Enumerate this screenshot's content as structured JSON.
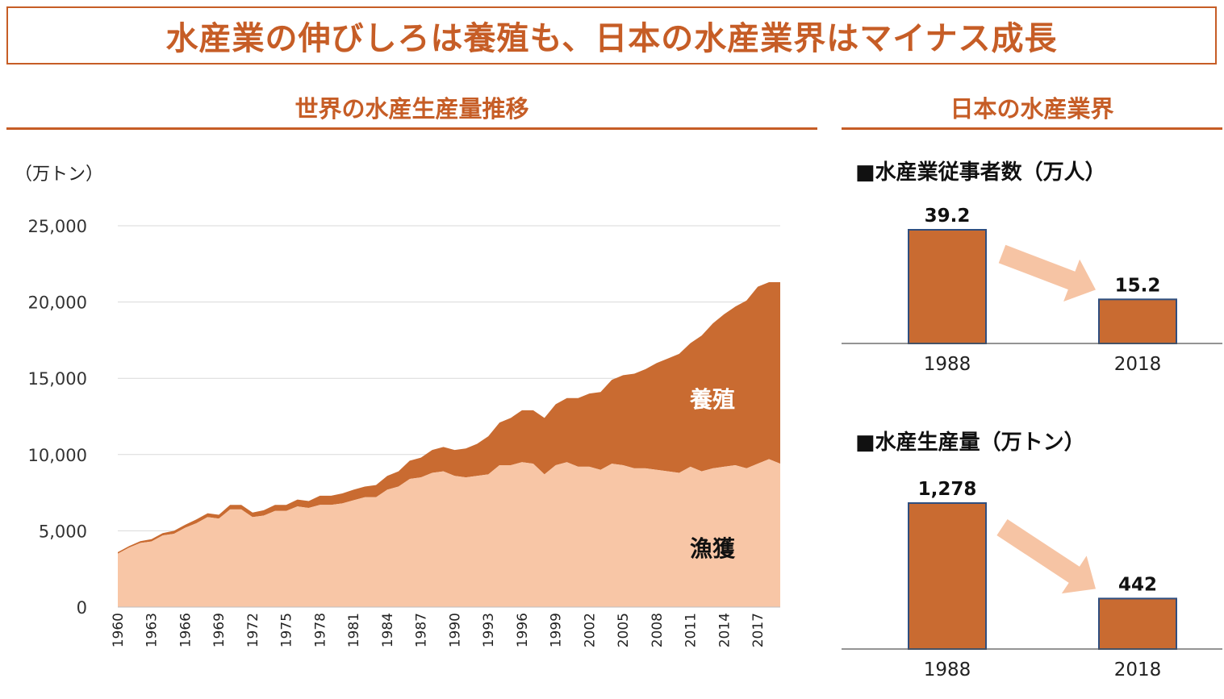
{
  "title": "水産業の伸びしろは養殖も、日本の水産業界はマイナス成長",
  "left_section_title": "世界の水産生産量推移",
  "right_section_title": "日本の水産業界",
  "colors": {
    "accent": "#c65d26",
    "capture": "#f8c6a6",
    "aquaculture": "#c96b31",
    "bar": "#c96b31",
    "bar_border": "#2f4e7f",
    "arrow": "#f6c4a4",
    "grid": "#d9d9d9"
  },
  "chart_data": [
    {
      "type": "area",
      "stacked": true,
      "unit_label": "（万トン）",
      "ylim": [
        0,
        25000
      ],
      "yticks": [
        "0",
        "5,000",
        "10,000",
        "15,000",
        "20,000",
        "25,000"
      ],
      "ytick_values": [
        0,
        5000,
        10000,
        15000,
        20000,
        25000
      ],
      "grid": true,
      "x": [
        1960,
        1961,
        1962,
        1963,
        1964,
        1965,
        1966,
        1967,
        1968,
        1969,
        1970,
        1971,
        1972,
        1973,
        1974,
        1975,
        1976,
        1977,
        1978,
        1979,
        1980,
        1981,
        1982,
        1983,
        1984,
        1985,
        1986,
        1987,
        1988,
        1989,
        1990,
        1991,
        1992,
        1993,
        1994,
        1995,
        1996,
        1997,
        1998,
        1999,
        2000,
        2001,
        2002,
        2003,
        2004,
        2005,
        2006,
        2007,
        2008,
        2009,
        2010,
        2011,
        2012,
        2013,
        2014,
        2015,
        2016,
        2017,
        2018,
        2019
      ],
      "xtick_labels": [
        "1960",
        "1963",
        "1966",
        "1969",
        "1972",
        "1975",
        "1978",
        "1981",
        "1984",
        "1987",
        "1990",
        "1993",
        "1996",
        "1999",
        "2002",
        "2005",
        "2008",
        "2011",
        "2014",
        "2017"
      ],
      "series": [
        {
          "name": "漁獲",
          "values": [
            3500,
            3900,
            4200,
            4300,
            4700,
            4800,
            5200,
            5500,
            5900,
            5800,
            6400,
            6400,
            5900,
            6000,
            6300,
            6300,
            6600,
            6500,
            6700,
            6700,
            6800,
            7000,
            7200,
            7200,
            7700,
            7900,
            8400,
            8500,
            8800,
            8900,
            8600,
            8500,
            8600,
            8700,
            9300,
            9300,
            9500,
            9400,
            8700,
            9300,
            9500,
            9200,
            9200,
            9000,
            9400,
            9300,
            9100,
            9100,
            9000,
            8900,
            8800,
            9200,
            8900,
            9100,
            9200,
            9300,
            9100,
            9400,
            9700,
            9400
          ]
        },
        {
          "name": "養殖",
          "values": [
            100,
            100,
            120,
            150,
            150,
            200,
            200,
            250,
            250,
            250,
            300,
            300,
            300,
            350,
            400,
            400,
            450,
            450,
            600,
            600,
            650,
            700,
            700,
            800,
            900,
            1000,
            1200,
            1300,
            1500,
            1600,
            1700,
            1900,
            2100,
            2500,
            2800,
            3100,
            3400,
            3500,
            3700,
            4000,
            4200,
            4500,
            4800,
            5100,
            5500,
            5900,
            6200,
            6500,
            7000,
            7400,
            7800,
            8100,
            8900,
            9500,
            10000,
            10400,
            11000,
            11600,
            11600,
            11900
          ]
        }
      ],
      "annotations": [
        "養殖",
        "漁獲"
      ]
    },
    {
      "type": "bar",
      "title": "■水産業従事者数（万人）",
      "categories": [
        "1988",
        "2018"
      ],
      "values": [
        39.2,
        15.2
      ],
      "value_labels": [
        "39.2",
        "15.2"
      ]
    },
    {
      "type": "bar",
      "title": "■水産生産量（万トン）",
      "categories": [
        "1988",
        "2018"
      ],
      "values": [
        1278,
        442
      ],
      "value_labels": [
        "1,278",
        "442"
      ]
    }
  ]
}
